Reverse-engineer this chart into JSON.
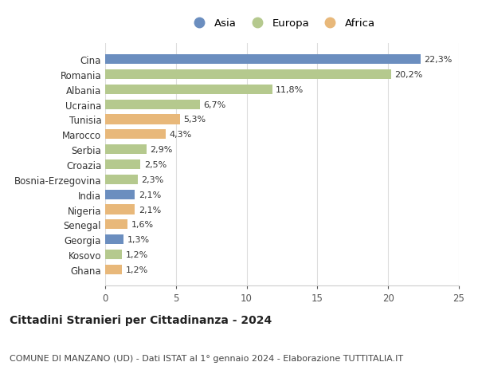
{
  "categories": [
    "Ghana",
    "Kosovo",
    "Georgia",
    "Senegal",
    "Nigeria",
    "India",
    "Bosnia-Erzegovina",
    "Croazia",
    "Serbia",
    "Marocco",
    "Tunisia",
    "Ucraina",
    "Albania",
    "Romania",
    "Cina"
  ],
  "values": [
    1.2,
    1.2,
    1.3,
    1.6,
    2.1,
    2.1,
    2.3,
    2.5,
    2.9,
    4.3,
    5.3,
    6.7,
    11.8,
    20.2,
    22.3
  ],
  "labels": [
    "1,2%",
    "1,2%",
    "1,3%",
    "1,6%",
    "2,1%",
    "2,1%",
    "2,3%",
    "2,5%",
    "2,9%",
    "4,3%",
    "5,3%",
    "6,7%",
    "11,8%",
    "20,2%",
    "22,3%"
  ],
  "continents": [
    "Africa",
    "Europa",
    "Asia",
    "Africa",
    "Africa",
    "Asia",
    "Europa",
    "Europa",
    "Europa",
    "Africa",
    "Africa",
    "Europa",
    "Europa",
    "Europa",
    "Asia"
  ],
  "colors": {
    "Asia": "#6b8ebf",
    "Europa": "#b5c98e",
    "Africa": "#e8b87a"
  },
  "legend_order": [
    "Asia",
    "Europa",
    "Africa"
  ],
  "title": "Cittadini Stranieri per Cittadinanza - 2024",
  "subtitle": "COMUNE DI MANZANO (UD) - Dati ISTAT al 1° gennaio 2024 - Elaborazione TUTTITALIA.IT",
  "xlim": [
    0,
    25
  ],
  "xticks": [
    0,
    5,
    10,
    15,
    20,
    25
  ],
  "background_color": "#ffffff",
  "bar_height": 0.65,
  "title_fontsize": 10,
  "subtitle_fontsize": 8,
  "label_fontsize": 8,
  "tick_fontsize": 8.5,
  "legend_fontsize": 9.5
}
